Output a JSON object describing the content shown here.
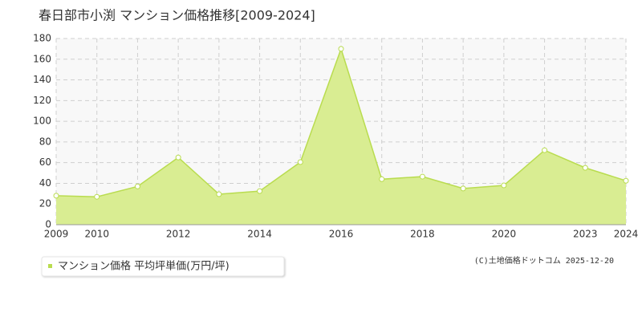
{
  "chart_data": {
    "type": "area",
    "title": "春日部市小渕 マンション価格推移[2009-2024]",
    "categories": [
      "2009",
      "2010",
      null,
      "2012",
      null,
      "2014",
      null,
      "2016",
      null,
      "2018",
      null,
      "2020",
      null,
      "2023",
      "2024"
    ],
    "series": [
      {
        "name": "マンション価格 平均坪単価(万円/坪)",
        "color": "#b9dc4f",
        "fill": "#d9ed92",
        "values": [
          28,
          27,
          37,
          65,
          29.5,
          32.5,
          60.5,
          170,
          44,
          46.5,
          35,
          38,
          72,
          55,
          42.5
        ]
      }
    ],
    "ylim": [
      0,
      180
    ],
    "yticks": [
      0,
      20,
      40,
      60,
      80,
      100,
      120,
      140,
      160,
      180
    ],
    "grid": true,
    "credit": "(C)土地価格ドットコム 2025-12-20"
  }
}
